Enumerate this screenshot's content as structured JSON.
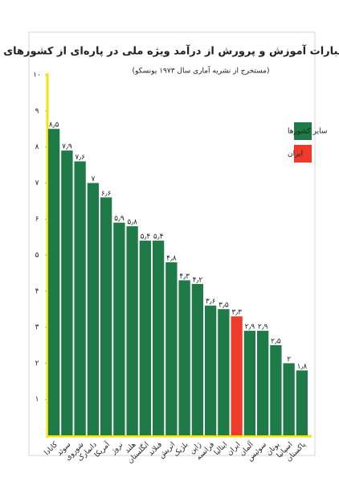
{
  "chart_data": {
    "type": "bar",
    "title": "درصد اعتبارات آموزش و پرورش از درآمد ویژه ملی در پاره‌ای از کشورهای جهان",
    "subtitle": "(مستخرج از نشریه آماری سال ۱۹۷۳ یونسکو)",
    "categories": [
      "کانادا",
      "سوئد",
      "شوروی",
      "دانمارک",
      "آمریکا",
      "نروژ",
      "هلند",
      "انگلستان",
      "فنلاند",
      "اتریش",
      "بلژیک",
      "ژاپن",
      "فرانسه",
      "ایتالیا",
      "ایران",
      "آلمان",
      "سوئیس",
      "یونان",
      "اسپانیا",
      "پاکستان"
    ],
    "values": [
      8.5,
      7.9,
      7.6,
      7.0,
      6.6,
      5.9,
      5.8,
      5.4,
      5.4,
      4.8,
      4.3,
      4.2,
      3.6,
      3.5,
      3.3,
      2.9,
      2.9,
      2.5,
      2.0,
      1.8
    ],
    "value_labels": [
      "۸٫۵",
      "۷٫۹",
      "۷٫۶",
      "۷",
      "۶٫۶",
      "۵٫۹",
      "۵٫۸",
      "۵٫۴",
      "۵٫۴",
      "۴٫۸",
      "۴٫۳",
      "۴٫۲",
      "۳٫۶",
      "۳٫۵",
      "۳٫۳",
      "۲٫۹",
      "۲٫۹",
      "۲٫۵",
      "۲",
      "۱٫۸"
    ],
    "colors": [
      "#1e7a46",
      "#1e7a46",
      "#1e7a46",
      "#1e7a46",
      "#1e7a46",
      "#1e7a46",
      "#1e7a46",
      "#1e7a46",
      "#1e7a46",
      "#1e7a46",
      "#1e7a46",
      "#1e7a46",
      "#1e7a46",
      "#1e7a46",
      "#ef3b2c",
      "#1e7a46",
      "#1e7a46",
      "#1e7a46",
      "#1e7a46",
      "#1e7a46"
    ],
    "legend": [
      {
        "label": "سایر کشورها",
        "color": "#1e7a46"
      },
      {
        "label": "ایران",
        "color": "#ef3b2c"
      }
    ],
    "ylim": [
      0,
      10
    ],
    "yticks": [
      {
        "value": 1,
        "label": "۱"
      },
      {
        "value": 2,
        "label": "۲"
      },
      {
        "value": 3,
        "label": "۳"
      },
      {
        "value": 4,
        "label": "۴"
      },
      {
        "value": 5,
        "label": "۵"
      },
      {
        "value": 6,
        "label": "۶"
      },
      {
        "value": 7,
        "label": "۷"
      },
      {
        "value": 8,
        "label": "۸"
      },
      {
        "value": 9,
        "label": "۹"
      },
      {
        "value": 10,
        "label": "۱۰"
      }
    ],
    "axis_color": "#f2e600"
  }
}
